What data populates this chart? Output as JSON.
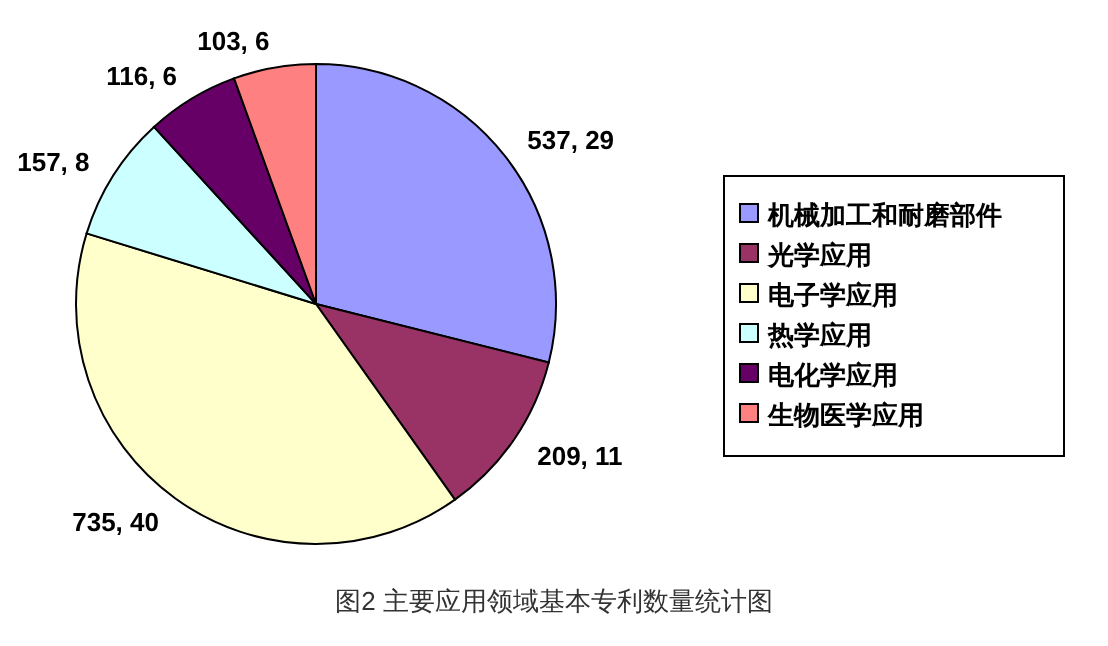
{
  "chart_data": {
    "type": "pie",
    "categories": [
      "机械加工和耐磨部件",
      "光学应用",
      "电子学应用",
      "热学应用",
      "电化学应用",
      "生物医学应用"
    ],
    "values": [
      537,
      209,
      735,
      157,
      116,
      103
    ],
    "value_labels": [
      "537, 29",
      "209, 11",
      "735, 40",
      "157, 8",
      "116, 6",
      "103, 6"
    ],
    "colors": [
      "#9999ff",
      "#993366",
      "#ffffcc",
      "#ccffff",
      "#660066",
      "#ff8080"
    ],
    "legend": "right",
    "annotations": [
      "图2  主要应用领域基本专利数量统计图"
    ]
  }
}
